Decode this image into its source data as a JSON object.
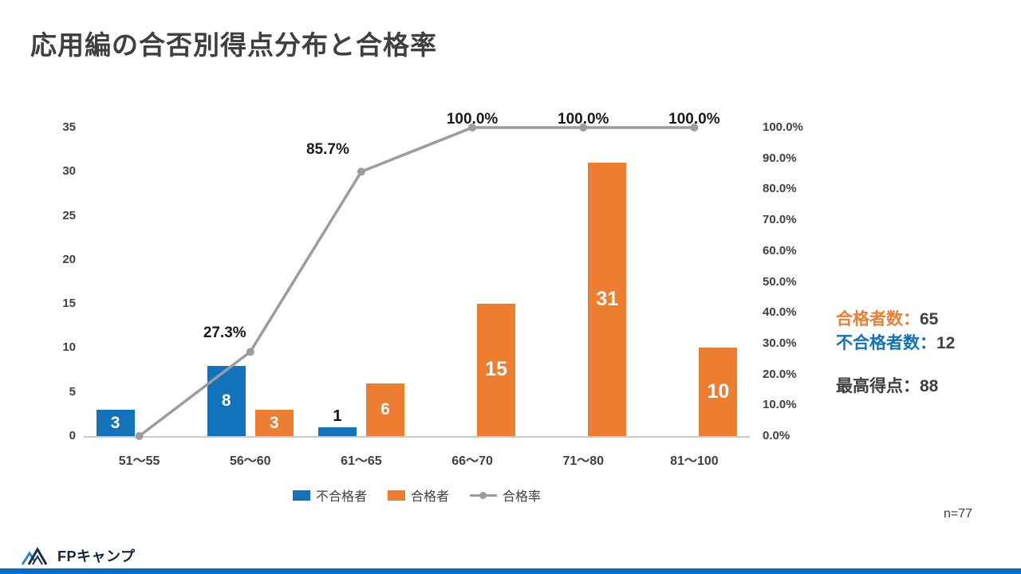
{
  "page": {
    "title": "応用編の合否別得点分布と合格率",
    "sample_size": "n=77",
    "logo_text": "FPキャンプ"
  },
  "summary": {
    "rows": [
      {
        "label": "合格者数：",
        "value": "65"
      },
      {
        "label": "不合格者数：",
        "value": "12"
      },
      {
        "label": "最高得点：",
        "value": "88"
      }
    ]
  },
  "colors": {
    "fail_blue": "#1272BA",
    "pass_orange": "#ED7D31",
    "rate_gray": "#9C9C9C",
    "text_dark": "#404040",
    "footer_blue": "#0070C0",
    "logo_navy": "#1B2B4A"
  },
  "chart_data": {
    "type": "combo-bar-line",
    "title": "応用編の合否別得点分布と合格率",
    "categories": [
      "51〜55",
      "56〜60",
      "61〜65",
      "66〜70",
      "71〜80",
      "81〜100"
    ],
    "series": [
      {
        "name": "不合格者",
        "type": "bar",
        "color_key": "fail_blue",
        "values": [
          3,
          8,
          1,
          0,
          0,
          0
        ]
      },
      {
        "name": "合格者",
        "type": "bar",
        "color_key": "pass_orange",
        "values": [
          0,
          3,
          6,
          15,
          31,
          10
        ]
      },
      {
        "name": "合格率",
        "type": "line",
        "color_key": "rate_gray",
        "unit": "%",
        "values": [
          0.0,
          27.3,
          85.7,
          100.0,
          100.0,
          100.0
        ],
        "point_labels": [
          "",
          "27.3%",
          "85.7%",
          "100.0%",
          "100.0%",
          "100.0%"
        ]
      }
    ],
    "left_axis": {
      "min": 0,
      "max": 35,
      "step": 5
    },
    "right_axis": {
      "min": 0,
      "max": 100,
      "step": 10,
      "format": "percent1"
    },
    "legend": [
      {
        "name": "不合格者",
        "marker": "square",
        "color_key": "fail_blue"
      },
      {
        "name": "合格者",
        "marker": "square",
        "color_key": "pass_orange"
      },
      {
        "name": "合格率",
        "marker": "line-dot",
        "color_key": "rate_gray"
      }
    ],
    "grid": false,
    "legend_position": "bottom"
  }
}
